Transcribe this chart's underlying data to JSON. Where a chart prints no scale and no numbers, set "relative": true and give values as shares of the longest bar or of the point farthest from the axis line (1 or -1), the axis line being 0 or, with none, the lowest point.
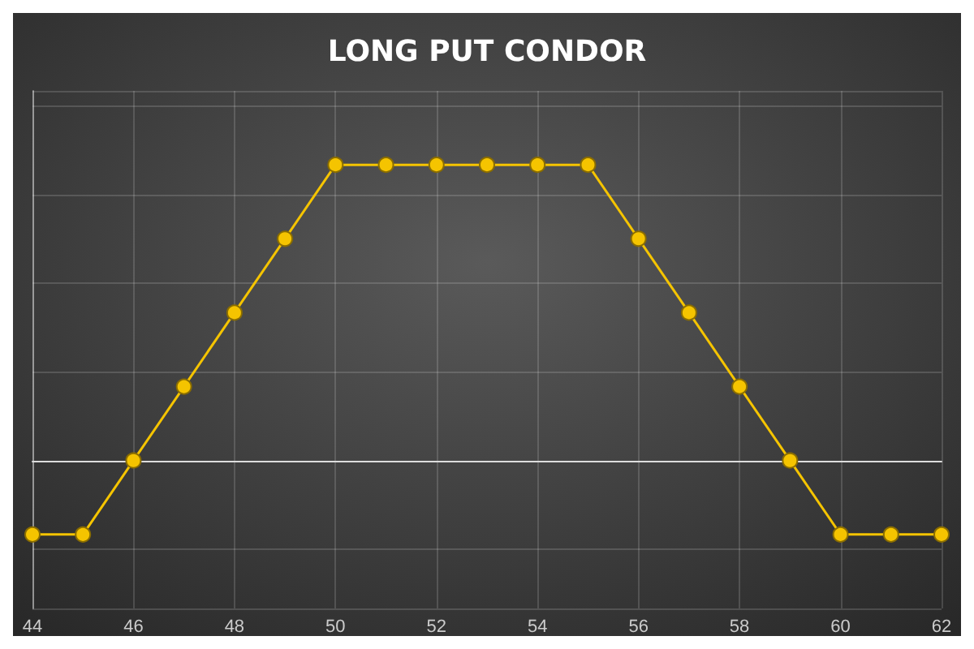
{
  "chart_data": {
    "type": "line",
    "title": "LONG PUT CONDOR",
    "relative": true,
    "x": [
      44,
      45,
      46,
      47,
      48,
      49,
      50,
      51,
      52,
      53,
      54,
      55,
      56,
      57,
      58,
      59,
      60,
      61,
      62
    ],
    "series": [
      {
        "color": "#f5c400",
        "values": [
          -0.25,
          -0.25,
          0,
          0.25,
          0.5,
          0.75,
          1,
          1,
          1,
          1,
          1,
          1,
          0.75,
          0.5,
          0.25,
          0,
          -0.25,
          -0.25,
          -0.25
        ]
      }
    ],
    "xlim": [
      44,
      62
    ],
    "xticks": [
      44,
      46,
      48,
      50,
      52,
      54,
      56,
      58,
      60,
      62
    ],
    "grid": true,
    "marker": "circle",
    "line_style": "solid",
    "tick_labels": "x"
  }
}
